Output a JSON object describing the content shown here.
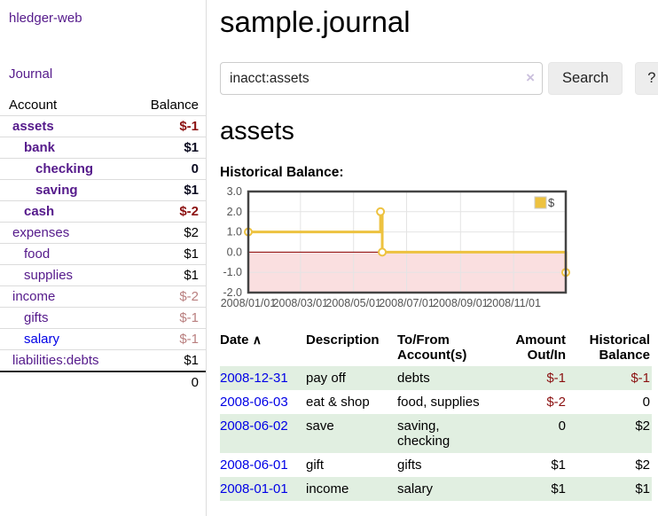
{
  "app": {
    "brand": "hledger-web",
    "nav_journal_label": "Journal"
  },
  "sidebar": {
    "table_headers": {
      "account": "Account",
      "balance": "Balance"
    },
    "accounts": [
      {
        "name": "assets",
        "depth": 1,
        "bold": true,
        "balance": "$-1",
        "balance_style": "neg-strong"
      },
      {
        "name": "bank",
        "depth": 2,
        "bold": true,
        "balance": "$1",
        "balance_style": "pos-strong"
      },
      {
        "name": "checking",
        "depth": 3,
        "bold": true,
        "balance": "0",
        "balance_style": "pos-strong"
      },
      {
        "name": "saving",
        "depth": 3,
        "bold": true,
        "balance": "$1",
        "balance_style": "pos-strong"
      },
      {
        "name": "cash",
        "depth": 2,
        "bold": true,
        "balance": "$-2",
        "balance_style": "neg-strong"
      },
      {
        "name": "expenses",
        "depth": 1,
        "bold": false,
        "balance": "$2",
        "balance_style": "pos"
      },
      {
        "name": "food",
        "depth": 2,
        "bold": false,
        "balance": "$1",
        "balance_style": "pos"
      },
      {
        "name": "supplies",
        "depth": 2,
        "bold": false,
        "balance": "$1",
        "balance_style": "pos"
      },
      {
        "name": "income",
        "depth": 1,
        "bold": false,
        "balance": "$-2",
        "balance_style": "neg-muted"
      },
      {
        "name": "gifts",
        "depth": 2,
        "bold": false,
        "balance": "$-1",
        "balance_style": "neg-muted"
      },
      {
        "name": "salary",
        "depth": 2,
        "bold": false,
        "link_color": "blue",
        "balance": "$-1",
        "balance_style": "neg-muted"
      },
      {
        "name": "liabilities:debts",
        "depth": 1,
        "bold": false,
        "balance": "$1",
        "balance_style": "pos"
      }
    ],
    "total": "0"
  },
  "header": {
    "title": "sample.journal"
  },
  "search": {
    "value": "inacct:assets",
    "clear_icon": "×",
    "search_button": "Search",
    "help_button": "?"
  },
  "account_page": {
    "heading": "assets"
  },
  "chart_data": {
    "type": "line",
    "step": true,
    "title": "Historical Balance:",
    "legend": {
      "position": "top-right",
      "entries": [
        {
          "label": "$",
          "color": "#edc240"
        }
      ]
    },
    "xlim": [
      "2008-01-01",
      "2008-12-31"
    ],
    "ylim": [
      -2,
      3
    ],
    "x_ticks": [
      {
        "date": "2008-01-01",
        "label": "2008/01/01"
      },
      {
        "date": "2008-03-01",
        "label": "2008/03/01"
      },
      {
        "date": "2008-05-01",
        "label": "2008/05/01"
      },
      {
        "date": "2008-07-01",
        "label": "2008/07/01"
      },
      {
        "date": "2008-09-01",
        "label": "2008/09/01"
      },
      {
        "date": "2008-11-01",
        "label": "2008/11/01"
      }
    ],
    "y_ticks": [
      {
        "value": 3,
        "label": "3.0"
      },
      {
        "value": 2,
        "label": "2.0"
      },
      {
        "value": 1,
        "label": "1.0"
      },
      {
        "value": 0,
        "label": "0.0"
      },
      {
        "value": -1,
        "label": "-1.0"
      },
      {
        "value": -2,
        "label": "-2.0"
      }
    ],
    "series": [
      {
        "name": "$",
        "color": "#edc240",
        "points": [
          {
            "date": "2008-01-01",
            "value": 1
          },
          {
            "date": "2008-06-01",
            "value": 2
          },
          {
            "date": "2008-06-03",
            "value": 0
          },
          {
            "date": "2008-12-31",
            "value": -1
          }
        ]
      }
    ],
    "negative_region_fill": "#fadfe0",
    "zero_line_color": "#8b0000",
    "grid_color": "#e4e4e4",
    "border_color": "#444444",
    "tick_label_color": "#545454"
  },
  "register_table": {
    "sort_icon": "∧",
    "headers": {
      "date": "Date",
      "description": "Description",
      "accounts": "To/From Account(s)",
      "amount": "Amount Out/In",
      "balance": "Historical Balance"
    },
    "rows": [
      {
        "date": "2008-12-31",
        "description": "pay off",
        "accounts": "debts",
        "amount": "$-1",
        "amount_neg": true,
        "balance": "$-1",
        "balance_neg": true,
        "shaded": true
      },
      {
        "date": "2008-06-03",
        "description": "eat & shop",
        "accounts": "food, supplies",
        "amount": "$-2",
        "amount_neg": true,
        "balance": "0",
        "balance_neg": false,
        "shaded": false
      },
      {
        "date": "2008-06-02",
        "description": "save",
        "accounts": "saving,\nchecking",
        "amount": "0",
        "amount_neg": false,
        "balance": "$2",
        "balance_neg": false,
        "shaded": true
      },
      {
        "date": "2008-06-01",
        "description": "gift",
        "accounts": "gifts",
        "amount": "$1",
        "amount_neg": false,
        "balance": "$2",
        "balance_neg": false,
        "shaded": false
      },
      {
        "date": "2008-01-01",
        "description": "income",
        "accounts": "salary",
        "amount": "$1",
        "amount_neg": false,
        "balance": "$1",
        "balance_neg": false,
        "shaded": true
      }
    ]
  }
}
